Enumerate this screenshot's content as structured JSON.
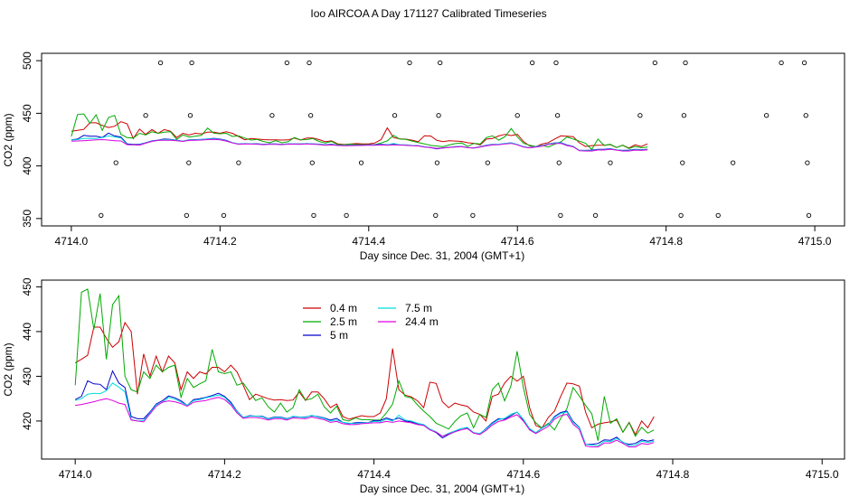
{
  "figure": {
    "title": "Ioo AIRCOA A  Day 171127  Calibrated Timeseries"
  },
  "chart_data": [
    {
      "type": "scatter+line",
      "xlabel": "Day since Dec. 31, 2004 (GMT+1)",
      "ylabel": "CO2 (ppm)",
      "xlim": [
        4713.96,
        4715.04
      ],
      "ylim": [
        343,
        507
      ],
      "xticks": [
        "4714.0",
        "4714.2",
        "4714.4",
        "4714.6",
        "4714.8",
        "4715.0"
      ],
      "yticks": [
        "350",
        "400",
        "450",
        "500"
      ],
      "ytick_rotation": "vertical",
      "grid": false,
      "points_series": {
        "name": "",
        "marker": "open-circle",
        "points": [
          [
            4714.04,
            353
          ],
          [
            4714.06,
            403
          ],
          [
            4714.1,
            448
          ],
          [
            4714.12,
            498
          ],
          [
            4714.155,
            353
          ],
          [
            4714.158,
            403
          ],
          [
            4714.16,
            448
          ],
          [
            4714.162,
            498
          ],
          [
            4714.205,
            353
          ],
          [
            4714.225,
            403
          ],
          [
            4714.27,
            448
          ],
          [
            4714.29,
            498
          ],
          [
            4714.32,
            498
          ],
          [
            4714.322,
            448
          ],
          [
            4714.324,
            403
          ],
          [
            4714.326,
            353
          ],
          [
            4714.37,
            353
          ],
          [
            4714.39,
            403
          ],
          [
            4714.435,
            448
          ],
          [
            4714.455,
            498
          ],
          [
            4714.49,
            353
          ],
          [
            4714.492,
            403
          ],
          [
            4714.494,
            448
          ],
          [
            4714.496,
            498
          ],
          [
            4714.54,
            353
          ],
          [
            4714.56,
            403
          ],
          [
            4714.6,
            448
          ],
          [
            4714.62,
            498
          ],
          [
            4714.652,
            498
          ],
          [
            4714.654,
            448
          ],
          [
            4714.656,
            403
          ],
          [
            4714.658,
            353
          ],
          [
            4714.705,
            353
          ],
          [
            4714.725,
            403
          ],
          [
            4714.765,
            448
          ],
          [
            4714.785,
            498
          ],
          [
            4714.82,
            353
          ],
          [
            4714.822,
            403
          ],
          [
            4714.824,
            448
          ],
          [
            4714.826,
            498
          ],
          [
            4714.87,
            353
          ],
          [
            4714.89,
            403
          ],
          [
            4714.935,
            448
          ],
          [
            4714.955,
            498
          ],
          [
            4714.986,
            498
          ],
          [
            4714.988,
            448
          ],
          [
            4714.99,
            403
          ],
          [
            4714.992,
            353
          ]
        ]
      },
      "line_series": [
        {
          "name": "0.4 m",
          "color": "#cc0000"
        },
        {
          "name": "2.5 m",
          "color": "#00aa00"
        },
        {
          "name": "5 m",
          "color": "#0000cc"
        },
        {
          "name": "7.5 m",
          "color": "#00dddd"
        },
        {
          "name": "24.4 m",
          "color": "#dd00dd"
        }
      ]
    },
    {
      "type": "line",
      "xlabel": "Day since Dec. 31, 2004 (GMT+1)",
      "ylabel": "CO2 (ppm)",
      "xlim": [
        4713.955,
        4715.03
      ],
      "ylim": [
        411.5,
        451.5
      ],
      "xticks": [
        "4714.0",
        "4714.2",
        "4714.4",
        "4714.6",
        "4714.8",
        "4715.0"
      ],
      "yticks": [
        "420",
        "430",
        "440",
        "450"
      ],
      "grid": false,
      "legend": {
        "placement": "top-left-center",
        "columns": 2,
        "order": [
          "0.4 m",
          "2.5 m",
          "5 m",
          "7.5 m",
          "24.4 m"
        ]
      },
      "x_start": 4714.0,
      "x_step": 0.008333,
      "series": [
        {
          "name": "0.4 m",
          "color": "#cc0000",
          "values": [
            433,
            433.8,
            434.7,
            441,
            441,
            438.5,
            436.5,
            437.7,
            442,
            440,
            426,
            435,
            430,
            434.5,
            431,
            434.5,
            433,
            427,
            431,
            429.5,
            431,
            430.5,
            432,
            432,
            431,
            432.5,
            431,
            428,
            424.8,
            426,
            425.5,
            425,
            424.7,
            424.8,
            424.6,
            424.7,
            426.5,
            424.6,
            426.5,
            426.5,
            425,
            423,
            423.8,
            421,
            420.4,
            420.8,
            421.2,
            421,
            421,
            421.8,
            425,
            436.2,
            427,
            425.8,
            425.4,
            424.5,
            423,
            428.7,
            428.4,
            424.3,
            423,
            424,
            423.6,
            423.3,
            422,
            421.5,
            420,
            425.5,
            426,
            428.5,
            430,
            428.9,
            430,
            423,
            419,
            418.4,
            420.8,
            422.2,
            425.5,
            428.5,
            428.3,
            427.8,
            422,
            418.5,
            419.3,
            419.6,
            419.8,
            420.2,
            417.5,
            419.7,
            417,
            420,
            418.5,
            421
          ]
        },
        {
          "name": "2.5 m",
          "color": "#00aa00",
          "values": [
            428,
            448.8,
            449.5,
            440.5,
            448.5,
            433.8,
            446,
            448,
            430,
            427,
            426.5,
            431,
            429.5,
            432.5,
            431,
            432,
            432.5,
            425.3,
            429.5,
            427.5,
            428.3,
            429,
            436,
            431,
            430.6,
            431,
            428,
            428.5,
            426.5,
            424.6,
            425.2,
            423.2,
            422,
            424,
            422,
            423,
            427,
            424.7,
            425,
            426,
            423.2,
            421.8,
            423.3,
            420.3,
            420,
            420.7,
            420.3,
            420.3,
            420.2,
            420.2,
            421.8,
            423.8,
            429,
            425.5,
            425.2,
            423.6,
            422.2,
            421,
            419.5,
            418.9,
            418.2,
            419.9,
            421.2,
            421.8,
            418.5,
            421.5,
            420.8,
            427,
            428.5,
            424.5,
            427.8,
            435.6,
            427.5,
            421.5,
            419.6,
            418.4,
            419.5,
            418,
            420.6,
            422.8,
            427.5,
            425.6,
            423.5,
            421.6,
            415.6,
            425.5,
            419.5,
            420.5,
            417.5,
            419.6,
            416.6,
            418.6,
            417.3,
            418
          ]
        },
        {
          "name": "5 m",
          "color": "#0000cc",
          "values": [
            424.8,
            425.5,
            429,
            428.3,
            428.2,
            427,
            431.2,
            428.5,
            427.5,
            421,
            420.5,
            420.5,
            422,
            423.8,
            424.5,
            425.6,
            425.2,
            424.5,
            423.5,
            424.8,
            425,
            425.3,
            425.7,
            426.2,
            425.5,
            424.2,
            422.2,
            420.8,
            421.2,
            421.1,
            421.1,
            420.5,
            420.9,
            420.9,
            420.5,
            421,
            420.9,
            420.9,
            421.2,
            421,
            420.7,
            420.2,
            420.6,
            419.7,
            419.4,
            419.6,
            419.7,
            419.6,
            420.1,
            420.1,
            420.7,
            420.2,
            420.7,
            420,
            419.8,
            419.4,
            419.2,
            418.1,
            417.4,
            416.2,
            417,
            417.6,
            418.3,
            418.5,
            417.4,
            417.1,
            418.3,
            419.6,
            420.5,
            420.4,
            421.2,
            422,
            420.2,
            418.1,
            417.3,
            418.5,
            419.2,
            421,
            421.9,
            422.2,
            419.9,
            418.6,
            414.8,
            414.8,
            415,
            415.8,
            415.7,
            416.4,
            415.2,
            414.8,
            415,
            415.8,
            415.5,
            415.8
          ]
        },
        {
          "name": "7.5 m",
          "color": "#00dddd",
          "values": [
            424.6,
            425,
            426,
            426.2,
            426.1,
            426.8,
            428.5,
            427.6,
            426.5,
            420.3,
            420,
            420.1,
            421.8,
            423.6,
            424.1,
            425.3,
            424.9,
            424.2,
            423.5,
            424.6,
            424.8,
            425.2,
            425.5,
            425.8,
            425.3,
            423.9,
            422.1,
            420.8,
            421.1,
            421.1,
            421,
            420.4,
            420.8,
            420.8,
            420.4,
            421.1,
            420.9,
            420.8,
            421.3,
            420.9,
            420.6,
            420,
            420.2,
            419.7,
            419.5,
            419.4,
            419.6,
            419.6,
            419.9,
            419.8,
            420.4,
            420,
            421.3,
            420.2,
            420,
            419.5,
            419.2,
            418.2,
            417.6,
            416.6,
            417.3,
            417.8,
            418.3,
            418.6,
            417.4,
            417.2,
            418.2,
            419.4,
            420.3,
            420.6,
            421.5,
            422,
            420.4,
            418.3,
            417.4,
            418.4,
            419.2,
            420.8,
            421.7,
            422,
            419.7,
            418.5,
            414.8,
            414.6,
            414.5,
            415.5,
            415.4,
            416.1,
            415.3,
            414.5,
            414.6,
            415.5,
            415.2,
            415.5
          ]
        },
        {
          "name": "24.4 m",
          "color": "#dd00dd",
          "values": [
            423.5,
            423.7,
            424,
            424.3,
            424.7,
            425,
            424.6,
            424,
            423.7,
            420.2,
            420,
            419.8,
            421.6,
            423.3,
            424.2,
            424.5,
            424.3,
            423.9,
            423.3,
            424.2,
            424.4,
            424.6,
            425,
            425.3,
            424.8,
            423.6,
            421.8,
            420.6,
            420.8,
            420.8,
            420.6,
            420.2,
            420.5,
            420.5,
            420.2,
            420.7,
            420.6,
            420.5,
            420.9,
            420.6,
            420.3,
            419.7,
            419.9,
            419.4,
            419.2,
            419.2,
            419.4,
            419.5,
            419.6,
            419.6,
            419.9,
            419.7,
            420,
            419.8,
            419.6,
            419.2,
            419,
            418,
            417.5,
            416.6,
            417.1,
            417.6,
            418,
            418.3,
            417.3,
            417,
            417.9,
            419.1,
            419.9,
            420.2,
            420.9,
            421.4,
            420,
            418,
            417.2,
            418,
            418.8,
            420.4,
            421.2,
            421.5,
            419.3,
            418.1,
            414.4,
            414.2,
            414.2,
            415.1,
            415.1,
            415.7,
            415,
            414.2,
            414.2,
            415,
            414.8,
            415.2
          ]
        }
      ]
    }
  ]
}
